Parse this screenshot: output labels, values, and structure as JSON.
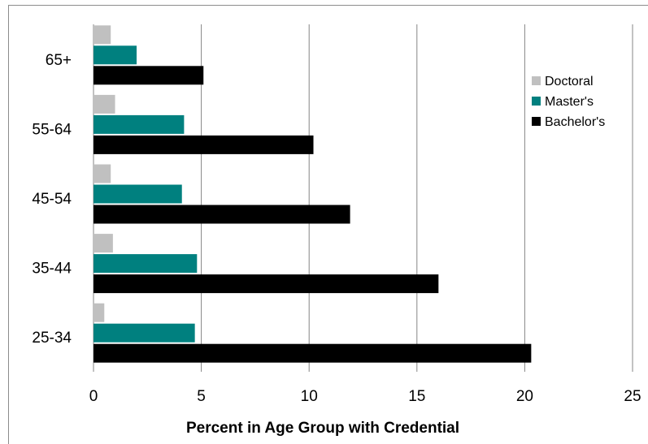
{
  "chart_data": {
    "type": "bar",
    "orientation": "horizontal",
    "categories": [
      "25-34",
      "35-44",
      "45-54",
      "55-64",
      "65+"
    ],
    "series": [
      {
        "name": "Doctoral",
        "color": "#c0c0c0",
        "values": [
          0.5,
          0.9,
          0.8,
          1.0,
          0.8
        ]
      },
      {
        "name": "Master's",
        "color": "#00807f",
        "values": [
          4.7,
          4.8,
          4.1,
          4.2,
          2.0
        ]
      },
      {
        "name": "Bachelor's",
        "color": "#000000",
        "values": [
          20.3,
          16.0,
          11.9,
          10.2,
          5.1
        ]
      }
    ],
    "xlabel": "Percent in Age Group with Credential",
    "ylabel": "",
    "xlim": [
      0,
      25
    ],
    "xticks": [
      "0",
      "5",
      "10",
      "15",
      "20",
      "25"
    ],
    "grid": "vertical",
    "legend": {
      "placement": "right",
      "order": [
        "Doctoral",
        "Master's",
        "Bachelor's"
      ]
    }
  }
}
